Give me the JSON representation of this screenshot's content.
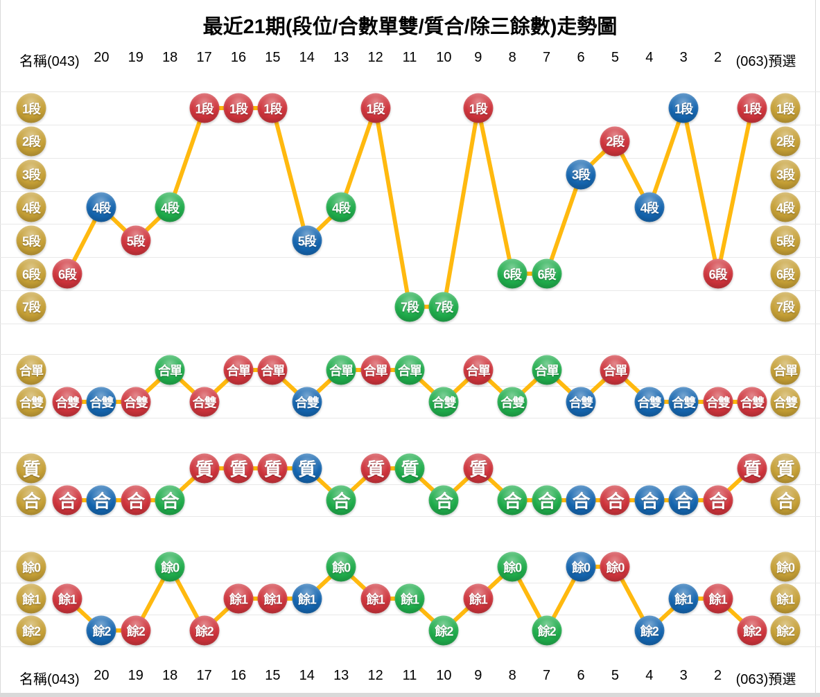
{
  "title": "最近21期(段位/合數單雙/質合/除三餘數)走勢圖",
  "header": {
    "name_label": "名稱(043)",
    "columns": [
      "20",
      "19",
      "18",
      "17",
      "16",
      "15",
      "14",
      "13",
      "12",
      "11",
      "10",
      "9",
      "8",
      "7",
      "6",
      "5",
      "4",
      "3",
      "2"
    ],
    "right_label": "(063)預選"
  },
  "colors": {
    "red": "#CE333B",
    "blue": "#1465AF",
    "green": "#1FAC4B",
    "gold": "#C59F35",
    "line": "#FFB90F",
    "grid": "#E8E8E8",
    "border": "#D9D9D9",
    "scrollbar": "#D9D9D9",
    "text": "#000000"
  },
  "chart_data": {
    "type": "line",
    "title": "最近21期(段位/合數單雙/質合/除三餘數)走勢圖",
    "categories": [
      "(043)",
      "20",
      "19",
      "18",
      "17",
      "16",
      "15",
      "14",
      "13",
      "12",
      "11",
      "10",
      "9",
      "8",
      "7",
      "6",
      "5",
      "4",
      "3",
      "2",
      "(063)預選"
    ],
    "point_colors": [
      "red",
      "blue",
      "red",
      "green",
      "red",
      "red",
      "red",
      "blue",
      "green",
      "red",
      "green",
      "green",
      "red",
      "green",
      "green",
      "blue",
      "red",
      "blue",
      "blue",
      "red",
      "red"
    ],
    "sections": [
      {
        "id": "duanwei",
        "name": "段位",
        "rows": [
          "1段",
          "2段",
          "3段",
          "4段",
          "5段",
          "6段",
          "7段"
        ],
        "values": [
          "6段",
          "4段",
          "5段",
          "4段",
          "1段",
          "1段",
          "1段",
          "5段",
          "4段",
          "1段",
          "7段",
          "7段",
          "1段",
          "6段",
          "6段",
          "3段",
          "2段",
          "4段",
          "1段",
          "6段",
          "1段"
        ]
      },
      {
        "id": "heshu-danshuang",
        "name": "合數單雙",
        "rows": [
          "合單",
          "合雙"
        ],
        "values": [
          "合雙",
          "合雙",
          "合雙",
          "合單",
          "合雙",
          "合單",
          "合單",
          "合雙",
          "合單",
          "合單",
          "合單",
          "合雙",
          "合單",
          "合雙",
          "合單",
          "合雙",
          "合單",
          "合雙",
          "合雙",
          "合雙",
          "合雙"
        ]
      },
      {
        "id": "zhihe",
        "name": "質合",
        "rows": [
          "質",
          "合"
        ],
        "values": [
          "合",
          "合",
          "合",
          "合",
          "質",
          "質",
          "質",
          "質",
          "合",
          "質",
          "質",
          "合",
          "質",
          "合",
          "合",
          "合",
          "合",
          "合",
          "合",
          "合",
          "質"
        ]
      },
      {
        "id": "chusan-yushu",
        "name": "除三餘數",
        "rows": [
          "餘0",
          "餘1",
          "餘2"
        ],
        "values": [
          "餘1",
          "餘2",
          "餘2",
          "餘0",
          "餘2",
          "餘1",
          "餘1",
          "餘1",
          "餘0",
          "餘1",
          "餘1",
          "餘2",
          "餘1",
          "餘0",
          "餘2",
          "餘0",
          "餘0",
          "餘2",
          "餘1",
          "餘1",
          "餘2"
        ]
      }
    ]
  }
}
